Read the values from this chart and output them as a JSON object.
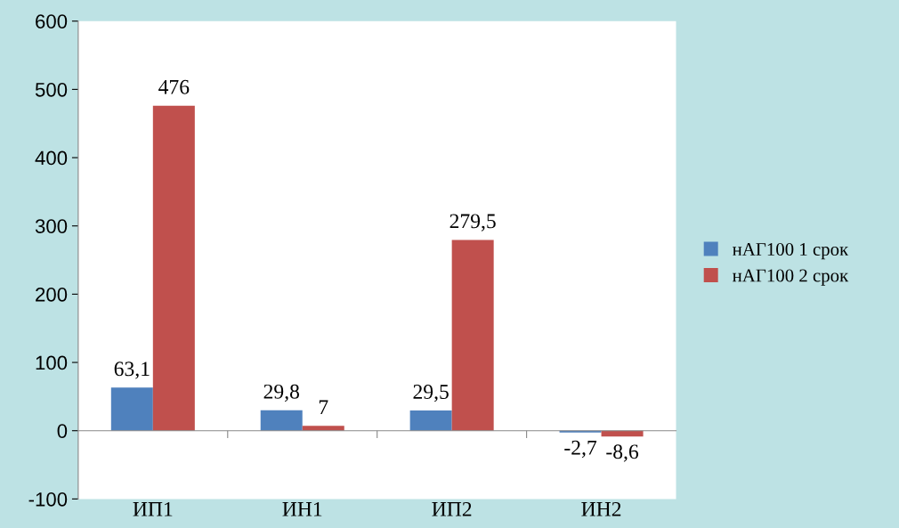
{
  "chart_data": {
    "type": "bar",
    "categories": [
      "ИП1",
      "ИН1",
      "ИП2",
      "ИН2"
    ],
    "series": [
      {
        "name": "нАГ100 1 срок",
        "color": "#4f81bd",
        "values": [
          63.1,
          29.8,
          29.5,
          -2.7
        ],
        "value_labels": [
          "63,1",
          "29,8",
          "29,5",
          "-2,7"
        ]
      },
      {
        "name": "нАГ100 2 срок",
        "color": "#c0504d",
        "values": [
          476,
          7,
          279.5,
          -8.6
        ],
        "value_labels": [
          "476",
          "7",
          "279,5",
          "-8,6"
        ]
      }
    ],
    "ylim": [
      -100,
      600
    ],
    "yticks": [
      -100,
      0,
      100,
      200,
      300,
      400,
      500,
      600
    ],
    "legend": "right"
  }
}
